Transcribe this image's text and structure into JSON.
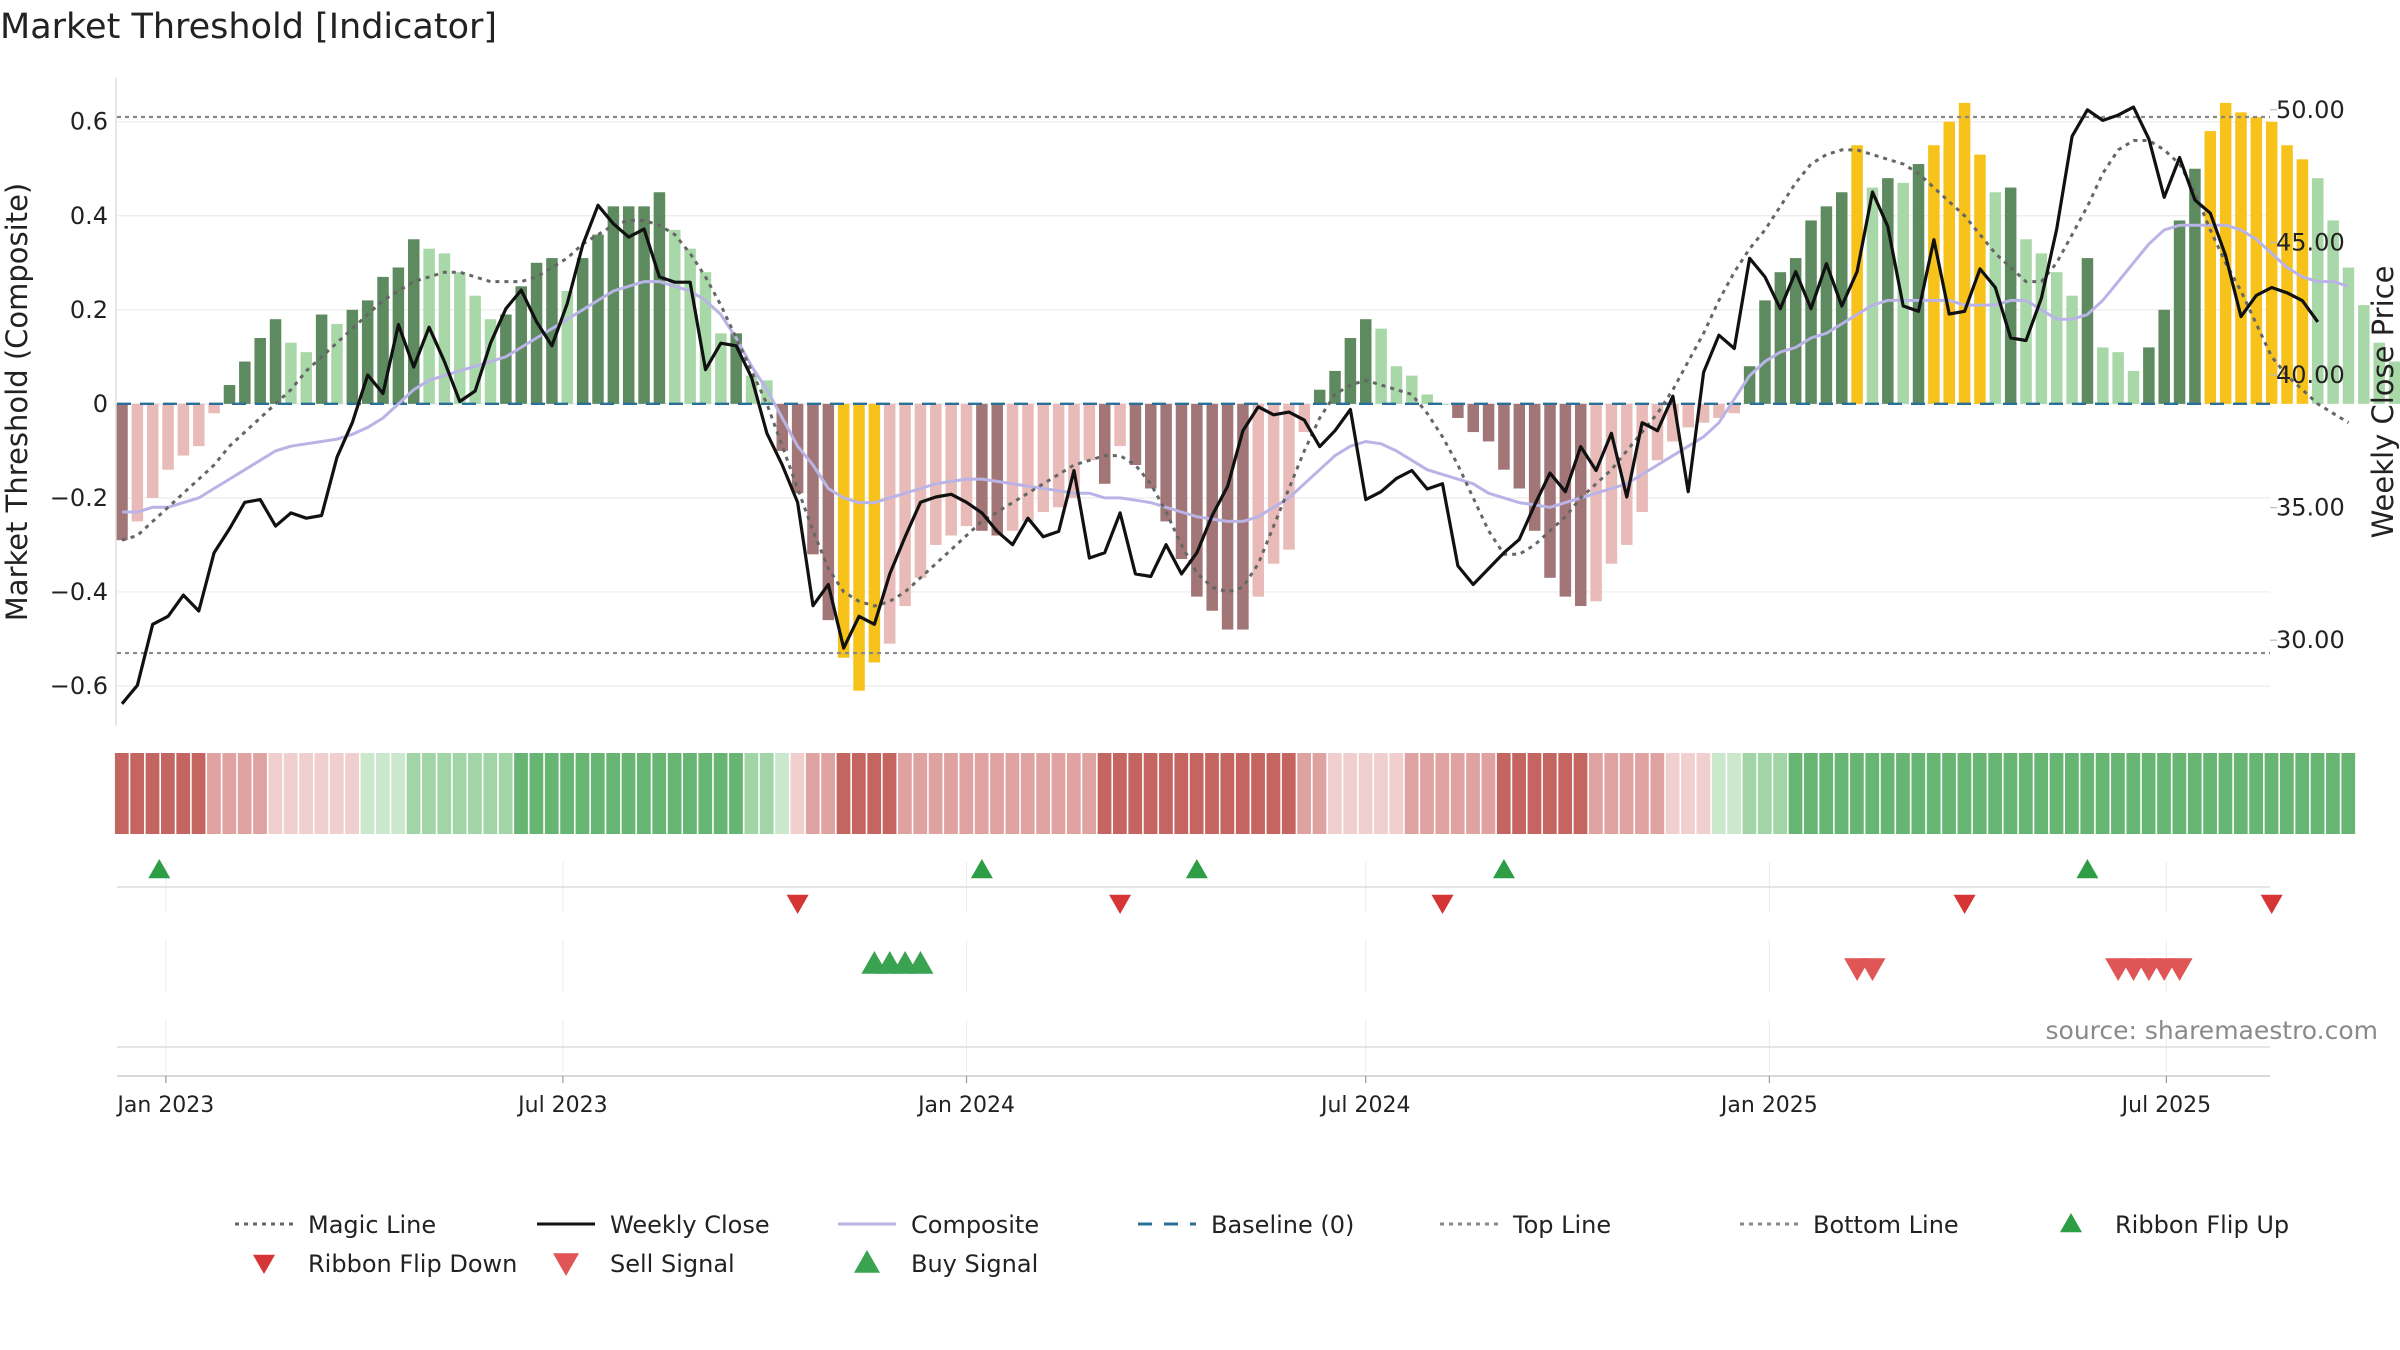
{
  "title": "Market Threshold [Indicator]",
  "source": "source: sharemaestro.com",
  "chart_data": {
    "type": "bar",
    "start_date": "2022-12-12",
    "weeks": 141,
    "x_ticks": [
      "Jan 2023",
      "Jul 2023",
      "Jan 2024",
      "Jul 2024",
      "Jan 2025",
      "Jul 2025"
    ],
    "x_tick_dates": [
      "2023-01-01",
      "2023-07-01",
      "2024-01-01",
      "2024-07-01",
      "2025-01-01",
      "2025-07-01"
    ],
    "ylabel_left": "Market Threshold (Composite)",
    "ylabel_right": "Weekly Close Price",
    "ylim_left": [
      -0.7,
      0.71
    ],
    "ylim_right": [
      26.5,
      51.5
    ],
    "y_ticks_left": [
      "0.6",
      "0.4",
      "0.2",
      "0",
      "−0.2",
      "−0.4",
      "−0.6"
    ],
    "y_tick_values_left": [
      0.6,
      0.4,
      0.2,
      0,
      -0.2,
      -0.4,
      -0.6
    ],
    "y_ticks_right": [
      "50.00",
      "45.00",
      "40.00",
      "35.00",
      "30.00"
    ],
    "y_tick_values_right": [
      50,
      45,
      40,
      35,
      30
    ],
    "top_line": 0.61,
    "bottom_line": -0.53,
    "composite_bars": [
      -0.29,
      -0.25,
      -0.2,
      -0.14,
      -0.11,
      -0.09,
      -0.02,
      0.04,
      0.09,
      0.14,
      0.18,
      0.13,
      0.11,
      0.19,
      0.17,
      0.2,
      0.22,
      0.27,
      0.29,
      0.35,
      0.33,
      0.32,
      0.28,
      0.23,
      0.18,
      0.19,
      0.25,
      0.3,
      0.31,
      0.24,
      0.31,
      0.36,
      0.42,
      0.42,
      0.42,
      0.45,
      0.37,
      0.33,
      0.28,
      0.15,
      0.15,
      0.06,
      0.05,
      -0.1,
      -0.19,
      -0.32,
      -0.46,
      -0.54,
      -0.61,
      -0.55,
      -0.51,
      -0.43,
      -0.37,
      -0.3,
      -0.28,
      -0.26,
      -0.27,
      -0.28,
      -0.27,
      -0.25,
      -0.23,
      -0.22,
      -0.2,
      -0.12,
      -0.17,
      -0.09,
      -0.13,
      -0.18,
      -0.25,
      -0.33,
      -0.41,
      -0.44,
      -0.48,
      -0.48,
      -0.41,
      -0.34,
      -0.31,
      -0.06,
      0.03,
      0.07,
      0.14,
      0.18,
      0.16,
      0.08,
      0.06,
      0.02,
      0.0,
      -0.03,
      -0.06,
      -0.08,
      -0.14,
      -0.18,
      -0.27,
      -0.37,
      -0.41,
      -0.43,
      -0.42,
      -0.34,
      -0.3,
      -0.23,
      -0.12,
      -0.08,
      -0.05,
      -0.04,
      -0.03,
      -0.02,
      0.08,
      0.22,
      0.28,
      0.31,
      0.39,
      0.42,
      0.45,
      0.55,
      0.46,
      0.48,
      0.47,
      0.51,
      0.55,
      0.6,
      0.64,
      0.53,
      0.45,
      0.46,
      0.35,
      0.32,
      0.28,
      0.23,
      0.31,
      0.12,
      0.11,
      0.07,
      0.12,
      0.2,
      0.39,
      0.5,
      0.58,
      0.64,
      0.62,
      0.61,
      0.6,
      0.55,
      0.52,
      0.48,
      0.39,
      0.29,
      0.21,
      0.13,
      0.09,
      -0.05
    ],
    "weekly_close": [
      27.6,
      28.3,
      30.6,
      30.9,
      31.7,
      31.1,
      33.3,
      34.2,
      35.2,
      35.3,
      34.3,
      34.8,
      34.6,
      34.7,
      36.9,
      38.2,
      40.0,
      39.3,
      41.9,
      40.3,
      41.8,
      40.5,
      39.0,
      39.4,
      41.2,
      42.5,
      43.2,
      42.0,
      41.1,
      42.7,
      44.9,
      46.4,
      45.7,
      45.2,
      45.5,
      43.7,
      43.5,
      43.5,
      40.2,
      41.2,
      41.1,
      39.9,
      37.8,
      36.6,
      35.2,
      31.3,
      32.1,
      29.7,
      30.9,
      30.6,
      32.5,
      33.9,
      35.2,
      35.4,
      35.5,
      35.2,
      34.8,
      34.1,
      33.6,
      34.6,
      33.9,
      34.1,
      36.4,
      33.1,
      33.3,
      34.8,
      32.5,
      32.4,
      33.6,
      32.5,
      33.3,
      34.7,
      35.8,
      37.9,
      38.8,
      38.5,
      38.6,
      38.3,
      37.3,
      37.9,
      38.7,
      35.3,
      35.6,
      36.1,
      36.4,
      35.7,
      35.9,
      32.8,
      32.1,
      32.7,
      33.3,
      33.8,
      35.1,
      36.3,
      35.6,
      37.3,
      36.4,
      37.8,
      35.4,
      38.2,
      37.9,
      39.2,
      35.6,
      40.1,
      41.5,
      41.0,
      44.4,
      43.7,
      42.5,
      43.9,
      42.5,
      44.2,
      42.6,
      43.9,
      46.9,
      45.6,
      42.6,
      42.4,
      45.1,
      42.3,
      42.4,
      44.0,
      43.3,
      41.4,
      41.3,
      42.9,
      45.5,
      49.0,
      50.0,
      49.6,
      49.8,
      50.1,
      48.9,
      46.7,
      48.2,
      46.6,
      46.1,
      44.5,
      42.2,
      43.0,
      43.3,
      43.1,
      42.8,
      42.0
    ],
    "composite_line": [
      -0.23,
      -0.23,
      -0.22,
      -0.22,
      -0.21,
      -0.2,
      -0.18,
      -0.16,
      -0.14,
      -0.12,
      -0.1,
      -0.09,
      -0.085,
      -0.08,
      -0.075,
      -0.065,
      -0.05,
      -0.03,
      0.0,
      0.03,
      0.05,
      0.06,
      0.07,
      0.08,
      0.09,
      0.1,
      0.12,
      0.14,
      0.16,
      0.18,
      0.2,
      0.22,
      0.24,
      0.25,
      0.26,
      0.26,
      0.25,
      0.24,
      0.22,
      0.19,
      0.14,
      0.08,
      0.03,
      -0.03,
      -0.09,
      -0.13,
      -0.18,
      -0.2,
      -0.21,
      -0.21,
      -0.2,
      -0.19,
      -0.18,
      -0.17,
      -0.165,
      -0.16,
      -0.16,
      -0.165,
      -0.17,
      -0.175,
      -0.18,
      -0.185,
      -0.19,
      -0.19,
      -0.2,
      -0.2,
      -0.205,
      -0.21,
      -0.22,
      -0.23,
      -0.24,
      -0.245,
      -0.25,
      -0.25,
      -0.24,
      -0.22,
      -0.2,
      -0.17,
      -0.14,
      -0.11,
      -0.09,
      -0.08,
      -0.085,
      -0.1,
      -0.12,
      -0.14,
      -0.15,
      -0.16,
      -0.17,
      -0.19,
      -0.2,
      -0.21,
      -0.215,
      -0.22,
      -0.21,
      -0.2,
      -0.19,
      -0.18,
      -0.17,
      -0.15,
      -0.13,
      -0.11,
      -0.09,
      -0.07,
      -0.04,
      0.01,
      0.06,
      0.09,
      0.11,
      0.12,
      0.14,
      0.15,
      0.17,
      0.19,
      0.21,
      0.22,
      0.22,
      0.22,
      0.22,
      0.22,
      0.21,
      0.21,
      0.21,
      0.22,
      0.22,
      0.2,
      0.18,
      0.18,
      0.19,
      0.22,
      0.26,
      0.3,
      0.34,
      0.37,
      0.38,
      0.38,
      0.38,
      0.38,
      0.37,
      0.35,
      0.32,
      0.29,
      0.27,
      0.26,
      0.26,
      0.25
    ],
    "magic_line": [
      -0.29,
      -0.28,
      -0.25,
      -0.22,
      -0.19,
      -0.16,
      -0.13,
      -0.09,
      -0.06,
      -0.03,
      0.0,
      0.03,
      0.07,
      0.1,
      0.13,
      0.16,
      0.19,
      0.22,
      0.24,
      0.26,
      0.27,
      0.28,
      0.28,
      0.27,
      0.26,
      0.26,
      0.26,
      0.27,
      0.29,
      0.31,
      0.34,
      0.36,
      0.38,
      0.39,
      0.39,
      0.38,
      0.36,
      0.32,
      0.27,
      0.21,
      0.14,
      0.07,
      0.0,
      -0.09,
      -0.18,
      -0.27,
      -0.35,
      -0.4,
      -0.42,
      -0.43,
      -0.42,
      -0.4,
      -0.37,
      -0.34,
      -0.31,
      -0.28,
      -0.25,
      -0.23,
      -0.21,
      -0.19,
      -0.17,
      -0.15,
      -0.13,
      -0.12,
      -0.11,
      -0.11,
      -0.13,
      -0.17,
      -0.23,
      -0.3,
      -0.36,
      -0.39,
      -0.4,
      -0.39,
      -0.34,
      -0.26,
      -0.18,
      -0.1,
      -0.03,
      0.02,
      0.04,
      0.05,
      0.04,
      0.03,
      0.02,
      -0.02,
      -0.07,
      -0.13,
      -0.2,
      -0.27,
      -0.32,
      -0.32,
      -0.3,
      -0.27,
      -0.24,
      -0.2,
      -0.17,
      -0.14,
      -0.1,
      -0.06,
      -0.02,
      0.03,
      0.09,
      0.15,
      0.22,
      0.28,
      0.33,
      0.37,
      0.42,
      0.47,
      0.51,
      0.53,
      0.54,
      0.54,
      0.53,
      0.52,
      0.51,
      0.49,
      0.46,
      0.43,
      0.4,
      0.36,
      0.32,
      0.29,
      0.26,
      0.26,
      0.3,
      0.36,
      0.42,
      0.49,
      0.54,
      0.56,
      0.56,
      0.54,
      0.51,
      0.45,
      0.37,
      0.3,
      0.24,
      0.17,
      0.1,
      0.06,
      0.03,
      0.0,
      -0.02,
      -0.04
    ],
    "bar_colors": {
      "strong_up": "#5d8a5e",
      "weak_up": "#a9d8a8",
      "strong_down": "#a27676",
      "weak_down": "#e9bbb8",
      "extreme": "#f7c21a"
    },
    "ribbon_colors": {
      "strong_up": "#66b573",
      "mid_up": "#a2d5a5",
      "light_up": "#cbe8cd",
      "strong_down": "#c46561",
      "mid_down": "#dea3a1",
      "light_down": "#f1cfce"
    },
    "ribbon_flip_up_dates": [
      "2022-12-29",
      "2024-01-08",
      "2024-04-15",
      "2024-09-02",
      "2025-05-26"
    ],
    "ribbon_flip_down_dates": [
      "2023-10-16",
      "2024-03-11",
      "2024-08-05",
      "2025-03-31",
      "2025-08-18"
    ],
    "buy_signal_dates": [
      "2023-11-20",
      "2023-11-27",
      "2023-12-04",
      "2023-12-11"
    ],
    "sell_signal_dates": [
      "2025-02-10",
      "2025-02-17",
      "2025-06-09",
      "2025-06-16",
      "2025-06-23",
      "2025-06-30",
      "2025-07-07"
    ],
    "series": [
      {
        "name": "Magic Line",
        "color": "#666666",
        "style": "dotted"
      },
      {
        "name": "Weekly Close",
        "color": "#111111",
        "style": "solid"
      },
      {
        "name": "Composite",
        "color": "#b9b3e6",
        "style": "solid"
      },
      {
        "name": "Baseline (0)",
        "color": "#2a6f97",
        "style": "dashed"
      },
      {
        "name": "Top Line",
        "color": "#888888",
        "style": "dotted"
      },
      {
        "name": "Bottom Line",
        "color": "#888888",
        "style": "dotted"
      },
      {
        "name": "Ribbon Flip Up",
        "color": "#2e9e46",
        "style": "triangle-up"
      },
      {
        "name": "Ribbon Flip Down",
        "color": "#d63535",
        "style": "triangle-down"
      },
      {
        "name": "Sell Signal",
        "color": "#e05555",
        "style": "triangle-down"
      },
      {
        "name": "Buy Signal",
        "color": "#3aa352",
        "style": "triangle-up"
      }
    ],
    "legend_position": "bottom"
  }
}
